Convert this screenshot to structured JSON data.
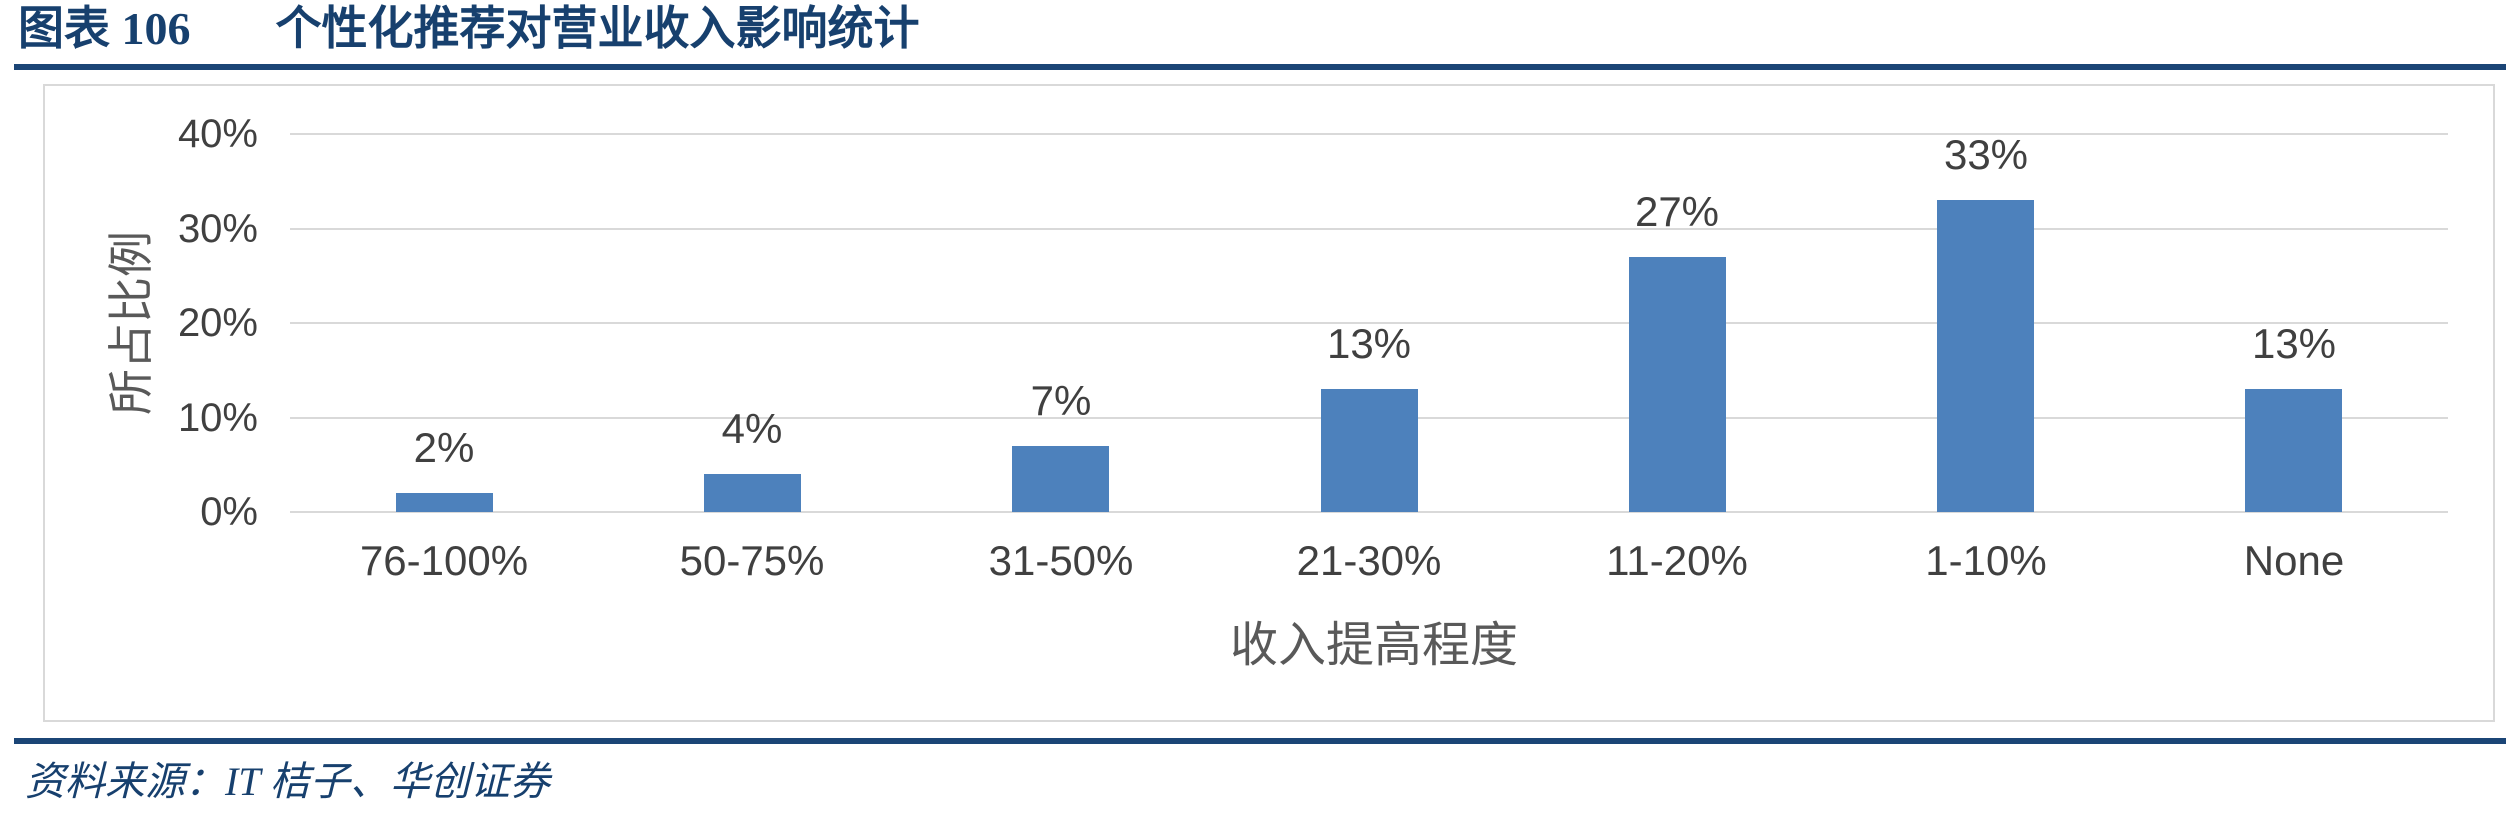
{
  "header": {
    "label": "图表 106",
    "title": "个性化推荐对营业收入影响统计"
  },
  "footer": {
    "source": "资料来源：IT 桔子、华创证券"
  },
  "colors": {
    "accent_navy": "#17406E",
    "rule_navy": "#1B4576",
    "bar_blue": "#4D81BC",
    "grid_gray": "#D9D9D9",
    "frame_border_gray": "#D9D9D9",
    "label_gray": "#404040",
    "axis_title_gray": "#595959"
  },
  "chart_data": {
    "type": "bar",
    "title": "个性化推荐对营业收入影响统计",
    "categories": [
      "76-100%",
      "50-75%",
      "31-50%",
      "21-30%",
      "11-20%",
      "1-10%",
      "None"
    ],
    "values": [
      2,
      4,
      7,
      13,
      27,
      33,
      13
    ],
    "value_labels": [
      "2%",
      "4%",
      "7%",
      "13%",
      "27%",
      "33%",
      "13%"
    ],
    "xlabel": "收入提高程度",
    "ylabel": "所占比例",
    "yticks": [
      "0%",
      "10%",
      "20%",
      "30%",
      "40%"
    ],
    "ytick_values": [
      0,
      10,
      20,
      30,
      40
    ],
    "ylim": [
      0,
      40
    ],
    "grid": "horizontal",
    "legend": "none",
    "bar_color": "#4D81BC"
  }
}
